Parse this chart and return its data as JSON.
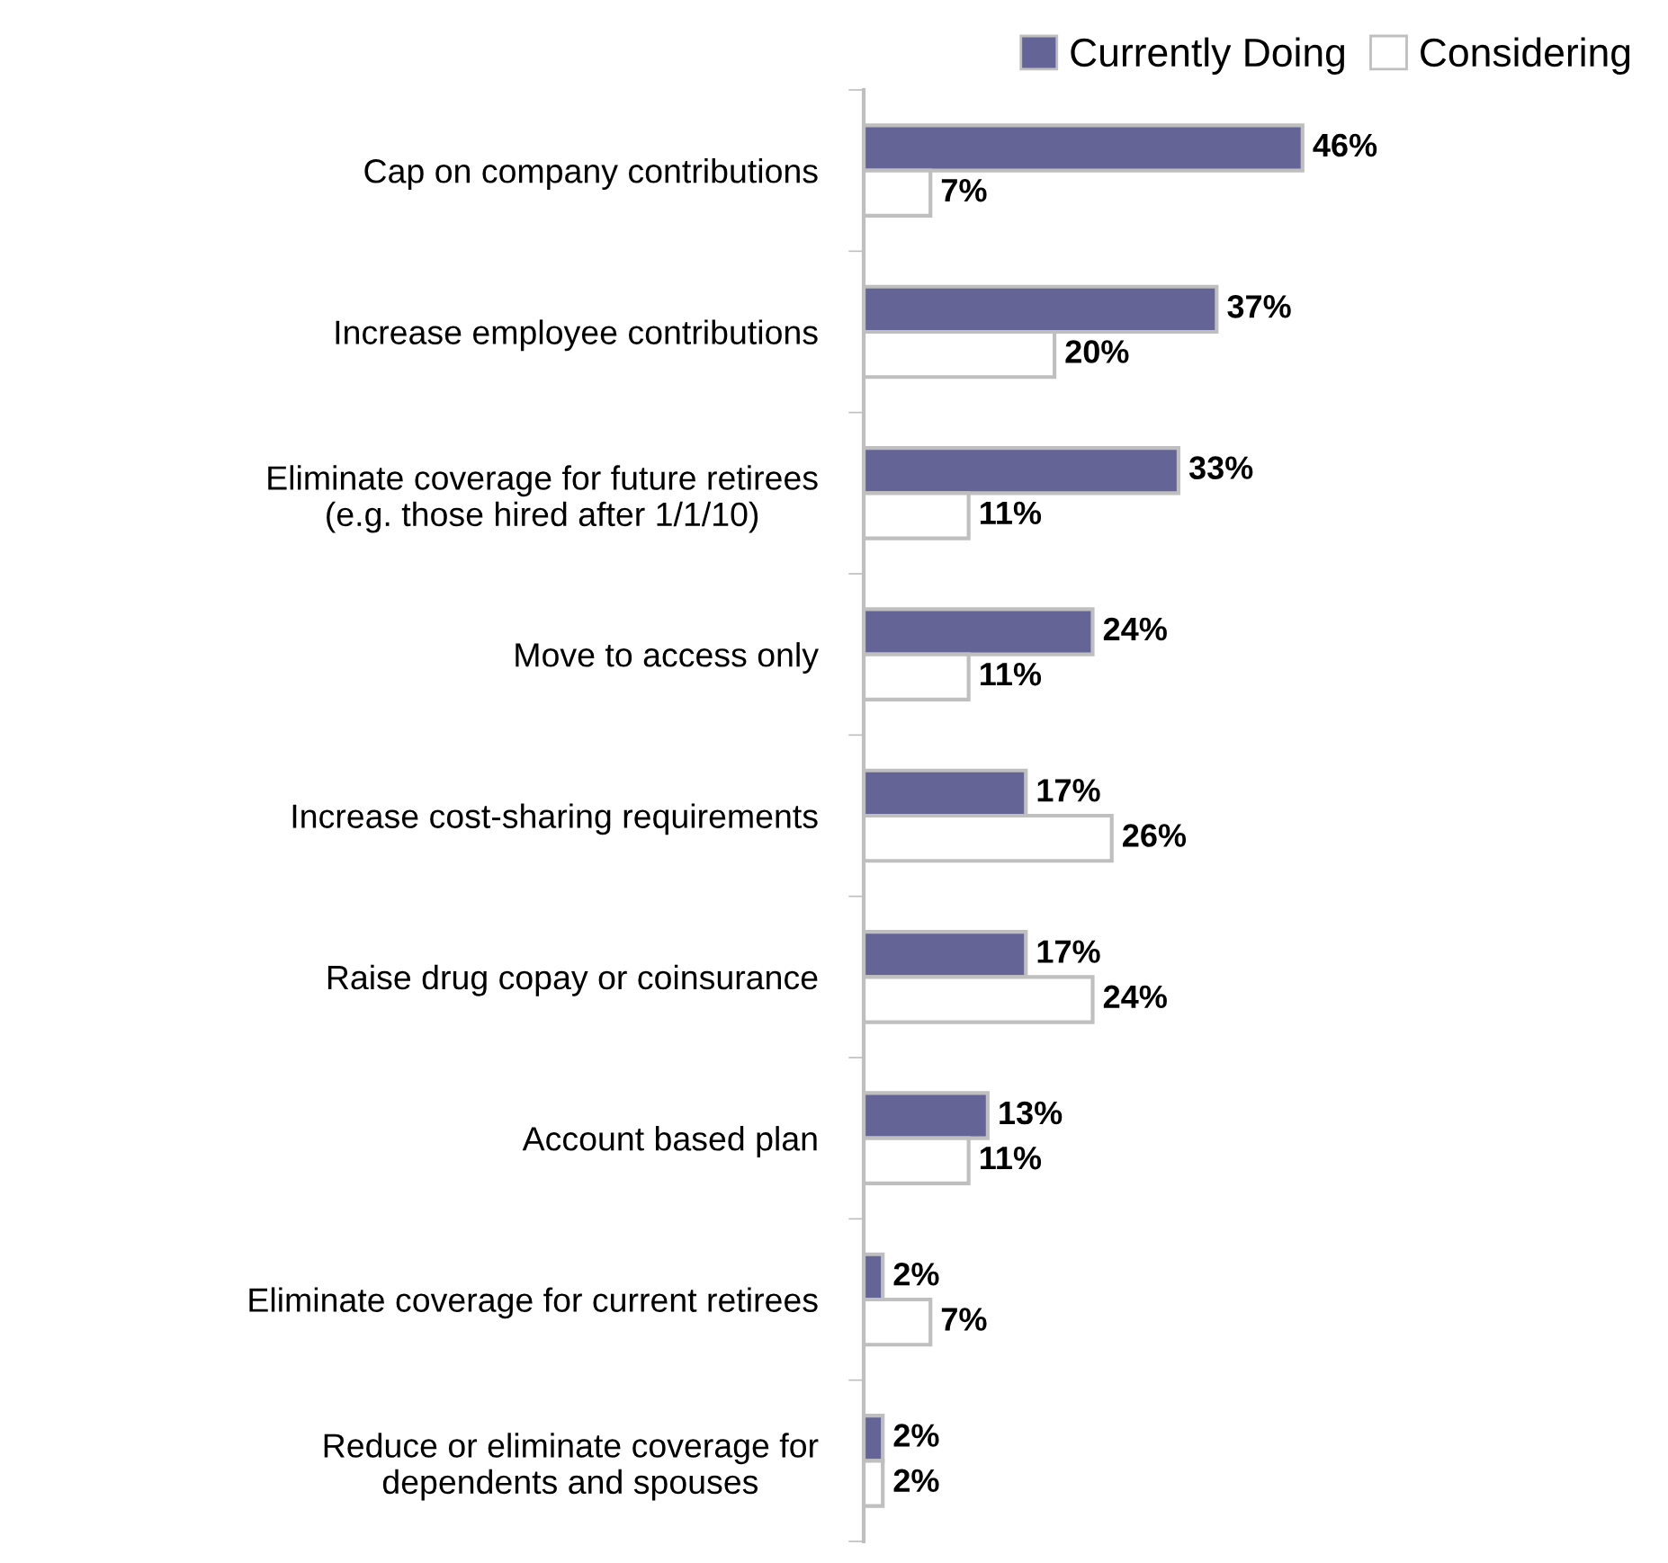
{
  "chart_data": {
    "type": "bar",
    "orientation": "horizontal",
    "categories": [
      "Cap on company contributions",
      "Increase employee contributions",
      "Eliminate coverage for future retirees\n(e.g. those hired after 1/1/10)",
      "Move to access only",
      "Increase cost-sharing requirements",
      "Raise drug copay or coinsurance",
      "Account based plan",
      "Eliminate coverage for current retirees",
      "Reduce or eliminate coverage for\ndependents and spouses"
    ],
    "series": [
      {
        "name": "Currently Doing",
        "color": "#646496",
        "values": [
          46,
          37,
          33,
          24,
          17,
          17,
          13,
          2,
          2
        ],
        "value_labels": [
          "46%",
          "37%",
          "33%",
          "24%",
          "17%",
          "17%",
          "13%",
          "2%",
          "2%"
        ]
      },
      {
        "name": "Considering",
        "color": "#ffffff",
        "values": [
          7,
          20,
          11,
          11,
          26,
          24,
          11,
          7,
          2
        ],
        "value_labels": [
          "7%",
          "20%",
          "11%",
          "11%",
          "26%",
          "24%",
          "11%",
          "7%",
          "2%"
        ]
      }
    ],
    "legend": "top right",
    "grid": false
  }
}
